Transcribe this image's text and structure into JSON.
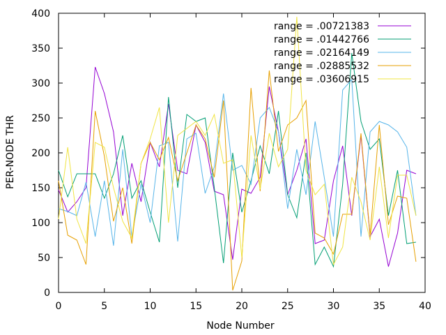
{
  "chart_data": {
    "type": "line",
    "xlabel": "Node Number",
    "ylabel": "PER-NODE THR",
    "xlim": [
      0,
      40
    ],
    "ylim": [
      0,
      400
    ],
    "x_ticks": [
      0,
      5,
      10,
      15,
      20,
      25,
      30,
      35,
      40
    ],
    "y_ticks": [
      0,
      50,
      100,
      150,
      200,
      250,
      300,
      350,
      400
    ],
    "grid": false,
    "legend_position": "top-right",
    "x": [
      0,
      1,
      2,
      3,
      4,
      5,
      6,
      7,
      8,
      9,
      10,
      11,
      12,
      13,
      14,
      15,
      16,
      17,
      18,
      19,
      20,
      21,
      22,
      23,
      24,
      25,
      26,
      27,
      28,
      29,
      30,
      31,
      32,
      33,
      34,
      35,
      36,
      37,
      38,
      39
    ],
    "series": [
      {
        "name": "range = .00721383",
        "color": "#9400d3",
        "values": [
          147,
          115,
          130,
          150,
          323,
          285,
          230,
          110,
          185,
          130,
          215,
          180,
          270,
          175,
          170,
          240,
          215,
          145,
          140,
          47,
          148,
          142,
          165,
          295,
          230,
          140,
          175,
          220,
          70,
          75,
          160,
          210,
          110,
          225,
          80,
          105,
          37,
          85,
          175,
          170
        ]
      },
      {
        "name": "range = .01442766",
        "color": "#009e73",
        "values": [
          175,
          137,
          170,
          170,
          170,
          135,
          170,
          225,
          135,
          160,
          115,
          72,
          280,
          150,
          255,
          245,
          250,
          150,
          42,
          200,
          115,
          160,
          210,
          170,
          260,
          140,
          107,
          200,
          40,
          65,
          37,
          155,
          343,
          245,
          205,
          220,
          110,
          175,
          70,
          72
        ]
      },
      {
        "name": "range = .02164149",
        "color": "#56b4e9",
        "values": [
          120,
          116,
          110,
          158,
          80,
          160,
          67,
          205,
          80,
          155,
          100,
          210,
          215,
          73,
          220,
          228,
          142,
          180,
          285,
          175,
          182,
          155,
          250,
          265,
          230,
          120,
          205,
          140,
          245,
          165,
          80,
          290,
          305,
          80,
          230,
          245,
          240,
          230,
          208,
          110
        ]
      },
      {
        "name": "range = .02885532",
        "color": "#e69f00",
        "values": [
          160,
          82,
          75,
          40,
          260,
          195,
          102,
          150,
          70,
          185,
          215,
          190,
          222,
          160,
          200,
          240,
          220,
          165,
          275,
          3,
          45,
          293,
          145,
          318,
          202,
          240,
          250,
          275,
          85,
          78,
          55,
          112,
          112,
          228,
          82,
          240,
          97,
          138,
          135,
          44
        ]
      },
      {
        "name": "range = .03606915",
        "color": "#f0e442",
        "values": [
          105,
          208,
          105,
          70,
          215,
          208,
          150,
          102,
          78,
          185,
          220,
          265,
          100,
          225,
          235,
          245,
          225,
          255,
          185,
          190,
          50,
          225,
          148,
          228,
          180,
          205,
          395,
          175,
          140,
          155,
          40,
          65,
          165,
          130,
          75,
          180,
          78,
          168,
          168,
          110
        ]
      }
    ]
  }
}
